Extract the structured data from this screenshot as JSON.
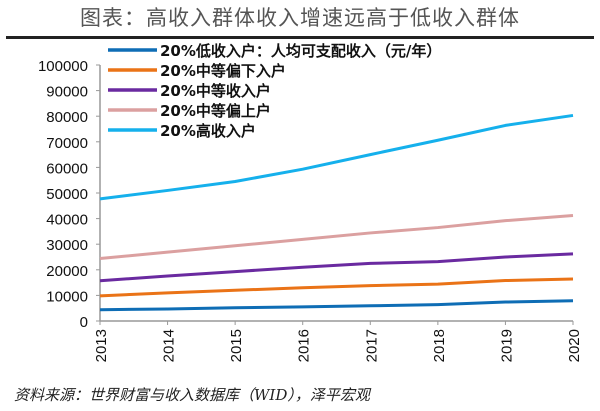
{
  "title": "图表：高收入群体收入增速远高于低收入群体",
  "source": "资料来源：世界财富与收入数据库（WID），泽平宏观",
  "chart_data": {
    "type": "line",
    "x": [
      "2013",
      "2014",
      "2015",
      "2016",
      "2017",
      "2018",
      "2019",
      "2020"
    ],
    "ylim": [
      0,
      100000
    ],
    "yticks": [
      "0",
      "10000",
      "20000",
      "30000",
      "40000",
      "50000",
      "60000",
      "70000",
      "80000",
      "90000",
      "100000"
    ],
    "grid": false,
    "legend": "top-left",
    "series": [
      {
        "name": "20%低收入户：人均可支配收入（元/年）",
        "color": "#0e6db5",
        "values": [
          4400,
          4700,
          5200,
          5500,
          5950,
          6400,
          7400,
          7900
        ]
      },
      {
        "name": "20%中等偏下入户",
        "color": "#ea7317",
        "values": [
          9800,
          11000,
          12000,
          13000,
          13800,
          14400,
          15800,
          16400
        ]
      },
      {
        "name": "20%中等收入户",
        "color": "#6a2aa0",
        "values": [
          15700,
          17600,
          19300,
          21000,
          22500,
          23200,
          25000,
          26200
        ]
      },
      {
        "name": "20%中等偏上户",
        "color": "#dba0a0",
        "values": [
          24400,
          26900,
          29400,
          31900,
          34400,
          36500,
          39200,
          41200
        ]
      },
      {
        "name": "20%高收入户",
        "color": "#15b0ec",
        "values": [
          47700,
          51000,
          54500,
          59300,
          65000,
          70600,
          76400,
          80300
        ]
      }
    ]
  }
}
